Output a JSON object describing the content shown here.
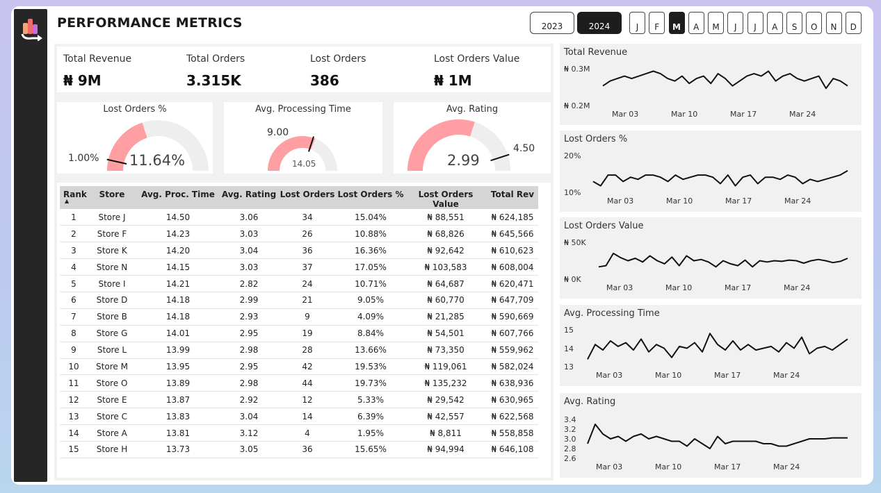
{
  "header": {
    "title": "PERFORMANCE METRICS",
    "years": [
      "2023",
      "2024"
    ],
    "active_year": "2024",
    "months": [
      "J",
      "F",
      "M",
      "A",
      "M",
      "J",
      "J",
      "A",
      "S",
      "O",
      "N",
      "D"
    ],
    "active_month_index": 2
  },
  "kpis": [
    {
      "label": "Total Revenue",
      "value": "₦ 9M"
    },
    {
      "label": "Total Orders",
      "value": "3.315K"
    },
    {
      "label": "Lost Orders",
      "value": "386"
    },
    {
      "label": "Lost Orders Value",
      "value": "₦ 1M"
    }
  ],
  "gauges": [
    {
      "title": "Lost Orders %",
      "value_text": "11.64%",
      "target_text": "1.00%",
      "value_fraction": 0.4,
      "target_fraction": 0.07,
      "color": "#ff9fa3"
    },
    {
      "title": "Avg. Processing Time",
      "value_text": "14.05",
      "target_text": "9.00",
      "value_fraction": 0.62,
      "target_fraction": 0.6,
      "color": "#ff9fa3"
    },
    {
      "title": "Avg. Rating",
      "value_text": "2.99",
      "target_text": "4.50",
      "value_fraction": 0.6,
      "target_fraction": 0.9,
      "color": "#ff9fa3"
    }
  ],
  "table": {
    "headers": [
      "Rank",
      "Store",
      "Avg. Proc. Time",
      "Avg. Rating",
      "Lost Orders",
      "Lost Orders %",
      "Lost Orders Value",
      "Total Rev"
    ],
    "rows": [
      [
        "1",
        "Store J",
        "14.50",
        "3.06",
        "34",
        "15.04%",
        "₦ 88,551",
        "₦ 624,185"
      ],
      [
        "2",
        "Store F",
        "14.23",
        "3.03",
        "26",
        "10.88%",
        "₦ 68,826",
        "₦ 645,566"
      ],
      [
        "3",
        "Store K",
        "14.20",
        "3.04",
        "36",
        "16.36%",
        "₦ 92,642",
        "₦ 610,623"
      ],
      [
        "4",
        "Store N",
        "14.15",
        "3.03",
        "37",
        "17.05%",
        "₦ 103,583",
        "₦ 608,004"
      ],
      [
        "5",
        "Store I",
        "14.21",
        "2.82",
        "24",
        "10.71%",
        "₦ 64,687",
        "₦ 620,471"
      ],
      [
        "6",
        "Store D",
        "14.18",
        "2.99",
        "21",
        "9.05%",
        "₦ 60,770",
        "₦ 647,709"
      ],
      [
        "7",
        "Store B",
        "14.18",
        "2.93",
        "9",
        "4.09%",
        "₦ 21,285",
        "₦ 590,669"
      ],
      [
        "8",
        "Store G",
        "14.01",
        "2.95",
        "19",
        "8.84%",
        "₦ 54,501",
        "₦ 607,766"
      ],
      [
        "9",
        "Store L",
        "13.99",
        "2.98",
        "28",
        "13.66%",
        "₦ 73,350",
        "₦ 559,962"
      ],
      [
        "10",
        "Store M",
        "13.95",
        "2.95",
        "42",
        "19.53%",
        "₦ 119,061",
        "₦ 582,024"
      ],
      [
        "11",
        "Store O",
        "13.89",
        "2.98",
        "44",
        "19.73%",
        "₦ 135,232",
        "₦ 638,936"
      ],
      [
        "12",
        "Store E",
        "13.87",
        "2.92",
        "12",
        "5.33%",
        "₦ 29,542",
        "₦ 630,965"
      ],
      [
        "13",
        "Store C",
        "13.83",
        "3.04",
        "14",
        "6.39%",
        "₦ 42,557",
        "₦ 622,568"
      ],
      [
        "14",
        "Store A",
        "13.81",
        "3.12",
        "4",
        "1.95%",
        "₦ 8,811",
        "₦ 558,858"
      ],
      [
        "15",
        "Store H",
        "13.73",
        "3.05",
        "36",
        "15.65%",
        "₦ 94,994",
        "₦ 646,108"
      ]
    ]
  },
  "sparklines": [
    {
      "title": "Total Revenue",
      "yticks": [
        "₦ 0.3M",
        "₦ 0.2M"
      ],
      "xticks": [
        "Mar 03",
        "Mar 10",
        "Mar 17",
        "Mar 24"
      ],
      "ymin": 0.2,
      "ymax": 0.35,
      "values": [
        0.28,
        0.3,
        0.31,
        0.32,
        0.31,
        0.32,
        0.33,
        0.34,
        0.33,
        0.31,
        0.3,
        0.32,
        0.29,
        0.31,
        0.32,
        0.29,
        0.33,
        0.31,
        0.28,
        0.3,
        0.32,
        0.33,
        0.32,
        0.34,
        0.3,
        0.32,
        0.33,
        0.31,
        0.3,
        0.31,
        0.32,
        0.27,
        0.31,
        0.3,
        0.28
      ]
    },
    {
      "title": "Lost Orders %",
      "yticks": [
        "20%",
        "10%"
      ],
      "xticks": [
        "Mar 03",
        "Mar 10",
        "Mar 17",
        "Mar 24"
      ],
      "ymin": 5,
      "ymax": 22,
      "values": [
        10,
        8,
        13,
        13,
        10,
        12,
        11,
        13,
        13,
        12,
        10,
        13,
        11,
        12,
        13,
        13,
        12,
        9,
        13,
        8,
        12,
        13,
        9,
        12,
        12,
        11,
        13,
        12,
        9,
        11,
        10,
        11,
        12,
        13,
        15
      ]
    },
    {
      "title": "Lost Orders Value",
      "yticks": [
        "₦ 50K",
        "₦ 0K"
      ],
      "xticks": [
        "Mar 03",
        "Mar 10",
        "Mar 17",
        "Mar 24"
      ],
      "ymin": 0,
      "ymax": 60000,
      "values": [
        20000,
        22000,
        42000,
        35000,
        30000,
        34000,
        28000,
        38000,
        30000,
        25000,
        36000,
        22000,
        38000,
        30000,
        32000,
        28000,
        20000,
        30000,
        25000,
        22000,
        31000,
        20000,
        30000,
        28000,
        30000,
        29000,
        31000,
        30000,
        26000,
        30000,
        32000,
        30000,
        27000,
        29000,
        34000
      ]
    },
    {
      "title": "Avg. Processing Time",
      "yticks": [
        "15",
        "14",
        "13"
      ],
      "xticks": [
        "Mar 03",
        "Mar 10",
        "Mar 17",
        "Mar 24"
      ],
      "ymin": 13,
      "ymax": 15,
      "values": [
        13.4,
        14.2,
        13.9,
        14.4,
        14.1,
        14.3,
        13.9,
        14.5,
        13.8,
        14.2,
        14.0,
        13.5,
        14.1,
        14.0,
        14.3,
        13.8,
        14.8,
        14.2,
        13.9,
        14.4,
        13.9,
        14.2,
        13.9,
        14.0,
        14.1,
        13.8,
        14.3,
        14.0,
        14.6,
        13.7,
        14.0,
        14.1,
        13.9,
        14.2,
        14.5
      ]
    },
    {
      "title": "Avg. Rating",
      "yticks": [
        "3.4",
        "3.2",
        "3.0",
        "2.8",
        "2.6"
      ],
      "xticks": [
        "Mar 03",
        "Mar 10",
        "Mar 17",
        "Mar 24"
      ],
      "ymin": 2.6,
      "ymax": 3.4,
      "values": [
        2.9,
        3.3,
        3.1,
        3.0,
        3.05,
        2.95,
        3.05,
        3.1,
        3.0,
        3.05,
        3.0,
        2.95,
        2.95,
        2.85,
        3.0,
        2.9,
        2.8,
        3.05,
        2.9,
        2.95,
        2.95,
        2.95,
        2.95,
        2.9,
        2.9,
        2.85,
        2.85,
        2.9,
        2.95,
        3.0,
        3.0,
        3.0,
        3.02,
        3.02,
        3.02
      ]
    }
  ],
  "colors": {
    "accent": "#ff9fa3",
    "dark": "#1d1d1d",
    "track": "#eeeeee"
  }
}
